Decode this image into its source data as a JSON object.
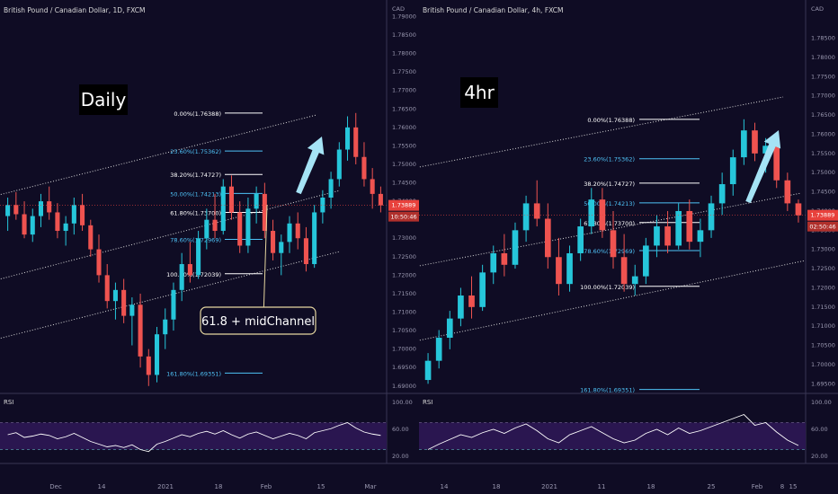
{
  "colors": {
    "bg": "#0f0c24",
    "up": "#26c6da",
    "down": "#ef5350",
    "price": "#e8413c",
    "fib": "#ffffff",
    "fib_alt": "#4fc3f7",
    "channel": "#d8d8d8",
    "arrow": "#a5e3f5",
    "rsi_band": "#2a1650",
    "rsi_line": "#ffffff",
    "callout_border": "#e6d7a0"
  },
  "panels": [
    {
      "symbol_title": "British Pound / Canadian Dollar, 1D, FXCM",
      "badge": "Daily",
      "currency": "CAD",
      "price_last": "1.73889",
      "countdown": "10:50:46",
      "rsi_label": "RSI",
      "callout": "61.8 + midChannel",
      "y_ticks": [
        "1.79400",
        "1.79000",
        "1.78500",
        "1.78000",
        "1.77500",
        "1.77000",
        "1.76500",
        "1.76000",
        "1.75500",
        "1.75000",
        "1.74500",
        "1.74000",
        "1.73500",
        "1.73000",
        "1.72500",
        "1.72000",
        "1.71500",
        "1.71000",
        "1.70500",
        "1.70000",
        "1.69500",
        "1.69000"
      ],
      "rsi_ticks": [
        "100.00",
        "60.00",
        "20.00"
      ],
      "x_ticks": [
        "Dec",
        "14",
        "2021",
        "18",
        "Feb",
        "15",
        "Mar"
      ],
      "fib_levels": [
        {
          "label": "0.00%(1.76388)",
          "price": 1.76388,
          "color": "#ffffff"
        },
        {
          "label": "23.60%(1.75362)",
          "price": 1.75362,
          "color": "#4fc3f7"
        },
        {
          "label": "38.20%(1.74727)",
          "price": 1.74727,
          "color": "#ffffff"
        },
        {
          "label": "50.00%(1.74213)",
          "price": 1.74213,
          "color": "#4fc3f7"
        },
        {
          "label": "61.80%(1.73700)",
          "price": 1.737,
          "color": "#ffffff"
        },
        {
          "label": "78.60%(1.72969)",
          "price": 1.72969,
          "color": "#4fc3f7"
        },
        {
          "label": "100.00%(1.72039)",
          "price": 1.72039,
          "color": "#ffffff"
        },
        {
          "label": "161.80%(1.69351)",
          "price": 1.69351,
          "color": "#4fc3f7"
        }
      ]
    },
    {
      "symbol_title": "British Pound / Canadian Dollar, 4h, FXCM",
      "badge": "4hr",
      "currency": "CAD",
      "price_last": "1.73889",
      "countdown": "02:50:46",
      "rsi_label": "RSI",
      "callout": "",
      "y_ticks": [
        "1.79400",
        "1.78500",
        "1.78000",
        "1.77500",
        "1.77000",
        "1.76500",
        "1.76000",
        "1.75500",
        "1.75000",
        "1.74500",
        "1.74000",
        "1.73500",
        "1.73000",
        "1.72500",
        "1.72000",
        "1.71500",
        "1.71000",
        "1.70500",
        "1.70000",
        "1.69500"
      ],
      "rsi_ticks": [
        "100.00",
        "60.00",
        "20.00"
      ],
      "x_ticks": [
        "14",
        "18",
        "2021",
        "11",
        "18",
        "25",
        "Feb",
        "8",
        "15"
      ],
      "fib_levels": [
        {
          "label": "0.00%(1.76388)",
          "price": 1.76388,
          "color": "#ffffff"
        },
        {
          "label": "23.60%(1.75362)",
          "price": 1.75362,
          "color": "#4fc3f7"
        },
        {
          "label": "38.20%(1.74727)",
          "price": 1.74727,
          "color": "#ffffff"
        },
        {
          "label": "50.00%(1.74213)",
          "price": 1.74213,
          "color": "#4fc3f7"
        },
        {
          "label": "61.80%(1.73700)",
          "price": 1.737,
          "color": "#ffffff"
        },
        {
          "label": "78.60%(1.72969)",
          "price": 1.72969,
          "color": "#4fc3f7"
        },
        {
          "label": "100.00%(1.72039)",
          "price": 1.72039,
          "color": "#ffffff"
        },
        {
          "label": "161.80%(1.69351)",
          "price": 1.69351,
          "color": "#4fc3f7"
        }
      ]
    }
  ],
  "chart_data": [
    {
      "type": "candlestick",
      "title": "British Pound / Canadian Dollar, 1D, FXCM",
      "timeframe": "1D",
      "ylim": [
        1.688,
        1.794
      ],
      "rsi_ylim": [
        20,
        100
      ],
      "candles": [
        [
          1.736,
          1.741,
          1.732,
          1.739
        ],
        [
          1.739,
          1.7425,
          1.735,
          1.7365
        ],
        [
          1.7365,
          1.74,
          1.73,
          1.731
        ],
        [
          1.731,
          1.738,
          1.729,
          1.736
        ],
        [
          1.736,
          1.742,
          1.733,
          1.74
        ],
        [
          1.74,
          1.744,
          1.735,
          1.737
        ],
        [
          1.737,
          1.7395,
          1.73,
          1.732
        ],
        [
          1.732,
          1.736,
          1.728,
          1.734
        ],
        [
          1.734,
          1.741,
          1.731,
          1.739
        ],
        [
          1.739,
          1.742,
          1.732,
          1.7335
        ],
        [
          1.7335,
          1.735,
          1.725,
          1.727
        ],
        [
          1.727,
          1.731,
          1.718,
          1.72
        ],
        [
          1.72,
          1.723,
          1.711,
          1.713
        ],
        [
          1.713,
          1.718,
          1.708,
          1.716
        ],
        [
          1.716,
          1.719,
          1.707,
          1.709
        ],
        [
          1.709,
          1.714,
          1.701,
          1.712
        ],
        [
          1.712,
          1.715,
          1.695,
          1.698
        ],
        [
          1.698,
          1.7,
          1.69,
          1.693
        ],
        [
          1.693,
          1.706,
          1.691,
          1.704
        ],
        [
          1.704,
          1.711,
          1.7,
          1.708
        ],
        [
          1.708,
          1.718,
          1.705,
          1.716
        ],
        [
          1.716,
          1.726,
          1.713,
          1.723
        ],
        [
          1.723,
          1.729,
          1.718,
          1.72
        ],
        [
          1.72,
          1.732,
          1.719,
          1.73
        ],
        [
          1.73,
          1.738,
          1.727,
          1.735
        ],
        [
          1.735,
          1.742,
          1.73,
          1.732
        ],
        [
          1.732,
          1.746,
          1.731,
          1.744
        ],
        [
          1.744,
          1.747,
          1.735,
          1.737
        ],
        [
          1.737,
          1.74,
          1.726,
          1.728
        ],
        [
          1.728,
          1.741,
          1.726,
          1.738
        ],
        [
          1.738,
          1.744,
          1.734,
          1.742
        ],
        [
          1.742,
          1.745,
          1.73,
          1.732
        ],
        [
          1.732,
          1.735,
          1.724,
          1.726
        ],
        [
          1.726,
          1.731,
          1.72,
          1.729
        ],
        [
          1.729,
          1.736,
          1.726,
          1.734
        ],
        [
          1.734,
          1.737,
          1.727,
          1.73
        ],
        [
          1.73,
          1.733,
          1.721,
          1.723
        ],
        [
          1.723,
          1.739,
          1.722,
          1.737
        ],
        [
          1.737,
          1.743,
          1.734,
          1.741
        ],
        [
          1.741,
          1.748,
          1.738,
          1.746
        ],
        [
          1.746,
          1.756,
          1.744,
          1.754
        ],
        [
          1.754,
          1.763,
          1.751,
          1.76
        ],
        [
          1.76,
          1.7639,
          1.75,
          1.752
        ],
        [
          1.752,
          1.756,
          1.744,
          1.746
        ],
        [
          1.746,
          1.749,
          1.738,
          1.742
        ],
        [
          1.742,
          1.744,
          1.737,
          1.7389
        ]
      ],
      "rsi": [
        52,
        55,
        48,
        50,
        53,
        51,
        46,
        49,
        54,
        48,
        42,
        38,
        34,
        36,
        33,
        37,
        30,
        27,
        38,
        42,
        47,
        52,
        49,
        54,
        57,
        53,
        58,
        52,
        47,
        53,
        56,
        51,
        46,
        50,
        54,
        51,
        46,
        55,
        58,
        61,
        66,
        70,
        62,
        56,
        53,
        51
      ]
    },
    {
      "type": "candlestick",
      "title": "British Pound / Canadian Dollar, 4h, FXCM",
      "timeframe": "4h",
      "ylim": [
        1.6925,
        1.7945
      ],
      "rsi_ylim": [
        20,
        100
      ],
      "candles": [
        [
          1.696,
          1.703,
          1.695,
          1.701
        ],
        [
          1.701,
          1.709,
          1.699,
          1.707
        ],
        [
          1.707,
          1.714,
          1.704,
          1.712
        ],
        [
          1.712,
          1.72,
          1.71,
          1.718
        ],
        [
          1.718,
          1.723,
          1.712,
          1.715
        ],
        [
          1.715,
          1.726,
          1.714,
          1.724
        ],
        [
          1.724,
          1.731,
          1.721,
          1.729
        ],
        [
          1.729,
          1.734,
          1.723,
          1.726
        ],
        [
          1.726,
          1.737,
          1.725,
          1.735
        ],
        [
          1.735,
          1.744,
          1.732,
          1.742
        ],
        [
          1.742,
          1.748,
          1.736,
          1.738
        ],
        [
          1.738,
          1.742,
          1.725,
          1.728
        ],
        [
          1.728,
          1.733,
          1.718,
          1.721
        ],
        [
          1.721,
          1.731,
          1.719,
          1.729
        ],
        [
          1.729,
          1.738,
          1.727,
          1.736
        ],
        [
          1.736,
          1.746,
          1.734,
          1.743
        ],
        [
          1.743,
          1.746,
          1.733,
          1.735
        ],
        [
          1.735,
          1.74,
          1.725,
          1.728
        ],
        [
          1.728,
          1.734,
          1.719,
          1.721
        ],
        [
          1.721,
          1.726,
          1.718,
          1.723
        ],
        [
          1.723,
          1.733,
          1.721,
          1.731
        ],
        [
          1.731,
          1.739,
          1.728,
          1.736
        ],
        [
          1.736,
          1.74,
          1.729,
          1.731
        ],
        [
          1.731,
          1.742,
          1.73,
          1.74
        ],
        [
          1.74,
          1.743,
          1.73,
          1.732
        ],
        [
          1.732,
          1.738,
          1.728,
          1.735
        ],
        [
          1.735,
          1.744,
          1.733,
          1.742
        ],
        [
          1.742,
          1.75,
          1.739,
          1.747
        ],
        [
          1.747,
          1.756,
          1.744,
          1.754
        ],
        [
          1.754,
          1.7639,
          1.752,
          1.761
        ],
        [
          1.761,
          1.763,
          1.753,
          1.755
        ],
        [
          1.755,
          1.759,
          1.75,
          1.757
        ],
        [
          1.757,
          1.758,
          1.746,
          1.748
        ],
        [
          1.748,
          1.75,
          1.74,
          1.742
        ],
        [
          1.742,
          1.743,
          1.737,
          1.7389
        ]
      ],
      "rsi": [
        30,
        38,
        45,
        52,
        48,
        55,
        60,
        54,
        62,
        68,
        58,
        46,
        40,
        52,
        58,
        64,
        55,
        46,
        40,
        44,
        54,
        60,
        52,
        62,
        54,
        58,
        64,
        70,
        76,
        82,
        66,
        70,
        56,
        44,
        36
      ]
    }
  ]
}
